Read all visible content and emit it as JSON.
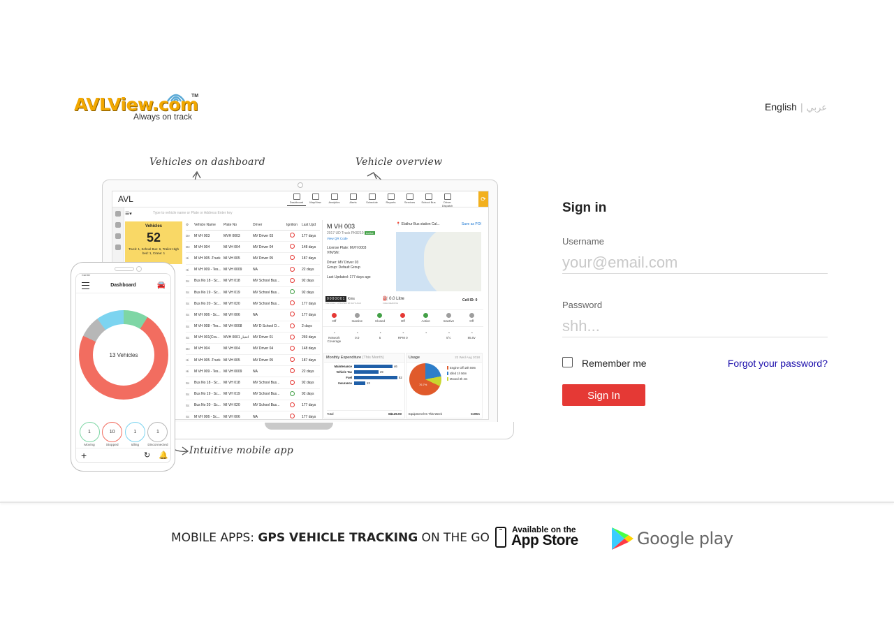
{
  "brand": {
    "name": "AVLView.com",
    "tm": "TM",
    "tagline": "Always on track"
  },
  "language": {
    "english": "English",
    "separator": "|",
    "arabic": "عربي"
  },
  "annotations": {
    "dashboard": "Vehicles on dashboard",
    "overview": "Vehicle overview",
    "mobile": "Intuitive mobile app"
  },
  "screen": {
    "brand": "AVL",
    "nav": [
      {
        "label": "Dashboard"
      },
      {
        "label": "MapView"
      },
      {
        "label": "Analytics"
      },
      {
        "label": "Alerts"
      },
      {
        "label": "Schedule"
      },
      {
        "label": "Reports"
      },
      {
        "label": "Services"
      },
      {
        "label": "School Bus"
      },
      {
        "label": "Driver Dispatch"
      }
    ],
    "search_placeholder": "Type to vehicle name or Plate or Address Enter key",
    "vehicles_card": {
      "title": "Vehicles",
      "count": "52",
      "detail": "Truck: 1, School Bus: 6, Trailor-High bed: 1, Crane: 1"
    },
    "table": {
      "headers": [
        "Vehicle Name",
        "Plate No",
        "Driver",
        "Ignition",
        "Last Upd"
      ],
      "rows": [
        {
          "tag": "De",
          "name": "M VH 003",
          "plate": "MVH 0003",
          "driver": "MV Driver 03",
          "ign": "off",
          "last": "177 days"
        },
        {
          "tag": "De",
          "name": "M VH 004",
          "plate": "MI VH 004",
          "driver": "MV Driver 04",
          "ign": "off",
          "last": "148 days"
        },
        {
          "tag": "Hi",
          "name": "M VH 005 -Truck",
          "plate": "MI VH 005",
          "driver": "MV Driver 05",
          "ign": "off",
          "last": "187 days"
        },
        {
          "tag": "Hi",
          "name": "M VH 009 - Tes...",
          "plate": "MI VH 0009",
          "driver": "NA",
          "ign": "off",
          "last": "22 days"
        },
        {
          "tag": "Sc",
          "name": "Bus No 18 - Sc...",
          "plate": "MI VH 018",
          "driver": "MV School Bus...",
          "ign": "off",
          "last": "92 days"
        },
        {
          "tag": "Sc",
          "name": "Bus No 19 - Sc...",
          "plate": "MI VH 019",
          "driver": "MV School Bus...",
          "ign": "on",
          "last": "92 days"
        },
        {
          "tag": "Sc",
          "name": "Bus No 20 - Sc...",
          "plate": "MI VH 020",
          "driver": "MV School Bus...",
          "ign": "off",
          "last": "177 days"
        },
        {
          "tag": "Sc",
          "name": "M VH 006 - Sc...",
          "plate": "MI VH 006",
          "driver": "NA",
          "ign": "off",
          "last": "177 days"
        },
        {
          "tag": "Sc",
          "name": "M VH 008 - Tes...",
          "plate": "MI VH 0008",
          "driver": "MV D School D...",
          "ign": "off",
          "last": "2 days"
        },
        {
          "tag": "Sc",
          "name": "M VH 001(Cra...",
          "plate": "MVH 0001 اختبار",
          "driver": "MV Driver 01",
          "ign": "off",
          "last": "269 days"
        },
        {
          "tag": "De",
          "name": "M VH 004",
          "plate": "MI VH 004",
          "driver": "MV Driver 04",
          "ign": "off",
          "last": "148 days"
        },
        {
          "tag": "Hi",
          "name": "M VH 005 -Truck",
          "plate": "MI VH 005",
          "driver": "MV Driver 05",
          "ign": "off",
          "last": "187 days"
        },
        {
          "tag": "Hi",
          "name": "M VH 009 - Tes...",
          "plate": "MI VH 0009",
          "driver": "NA",
          "ign": "off",
          "last": "22 days"
        },
        {
          "tag": "Sc",
          "name": "Bus No 18 - Sc...",
          "plate": "MI VH 018",
          "driver": "MV School Bus...",
          "ign": "off",
          "last": "92 days"
        },
        {
          "tag": "Sc",
          "name": "Bus No 19 - Sc...",
          "plate": "MI VH 019",
          "driver": "MV School Bus...",
          "ign": "on",
          "last": "92 days"
        },
        {
          "tag": "Sc",
          "name": "Bus No 20 - Sc...",
          "plate": "MI VH 020",
          "driver": "MV School Bus...",
          "ign": "off",
          "last": "177 days"
        },
        {
          "tag": "Sc",
          "name": "M VH 006 - Sc...",
          "plate": "MI VH 006",
          "driver": "NA",
          "ign": "off",
          "last": "177 days"
        }
      ]
    },
    "overview": {
      "title": "M VH 003",
      "subtitle": "2017 UD Truck PK8210",
      "status": "Active",
      "qr_link": "View QR Code",
      "info": [
        "License Plate: MVH 0003",
        "VIN/SN:",
        "",
        "Driver: MV Driver 03",
        "Group: Default Group",
        "",
        "Last Updated: 177 days ago"
      ],
      "map_place": "Elathur Bus station Cal...",
      "map_save": "Save as POI",
      "odometer": "0000001",
      "odometer_unit": "Kms",
      "odometer_note": "MANUALLY UPDATED 38 DAYS AGO",
      "fuel": "0.0 Litre",
      "fuel_note": "FUEL READING",
      "cell": "Cell ID: 0",
      "statuses": [
        {
          "label": "Off",
          "color": "#e53935"
        },
        {
          "label": "Inactive",
          "color": "#9e9e9e"
        },
        {
          "label": "Closed",
          "color": "#43a047"
        },
        {
          "label": "Off",
          "color": "#e53935"
        },
        {
          "label": "Active",
          "color": "#43a047"
        },
        {
          "label": "Inactive",
          "color": "#9e9e9e"
        },
        {
          "label": "Off",
          "color": "#9e9e9e"
        }
      ],
      "metrics": [
        {
          "label": "Network Coverage"
        },
        {
          "label": "0.0"
        },
        {
          "label": "5"
        },
        {
          "label": "RPM 0"
        },
        {
          "label": ""
        },
        {
          "label": "5°c"
        },
        {
          "label": "85.0v"
        }
      ],
      "expenditure": {
        "title": "Monthly Expenditure",
        "period": "(This Month)",
        "bars": [
          {
            "label": "Maintenance",
            "value": 46
          },
          {
            "label": "Vehicle Tax",
            "value": 29
          },
          {
            "label": "Fuel",
            "value": 52
          },
          {
            "label": "Insurance",
            "value": 13
          }
        ],
        "total_label": "Total",
        "total_value": "S$139.00"
      },
      "usage": {
        "title": "Usage",
        "date": "22 Wed Aug 2018",
        "legend": [
          "Engine Off 18h 59m",
          "Idled 1h 56m",
          "Moved 3h 4m"
        ],
        "pie_label": "76.7%",
        "footer": "Equipment hrs This Week",
        "footer_value": "0.0Hrs"
      }
    }
  },
  "phone": {
    "carrier": "Carrier",
    "title": "Dashboard",
    "center": "13 Vehicles",
    "stats": [
      {
        "value": "1",
        "label": "Moving",
        "color": "#7ed6a5"
      },
      {
        "value": "10",
        "label": "Stopped",
        "color": "#f26d60"
      },
      {
        "value": "1",
        "label": "Idling",
        "color": "#7cd4f0"
      },
      {
        "value": "1",
        "label": "Disconnected",
        "color": "#b7b7b7"
      }
    ]
  },
  "signin": {
    "title": "Sign in",
    "username_label": "Username",
    "username_placeholder": "your@email.com",
    "password_label": "Password",
    "password_placeholder": "shh...",
    "remember": "Remember me",
    "forgot": "Forgot your password?",
    "button": "Sign In"
  },
  "footer": {
    "prefix": "MOBILE APPS: ",
    "highlight": "GPS VEHICLE TRACKING",
    "suffix": " ON THE GO",
    "appstore_top": "Available on the",
    "appstore_main": "App Store",
    "googleplay": "Google play"
  }
}
